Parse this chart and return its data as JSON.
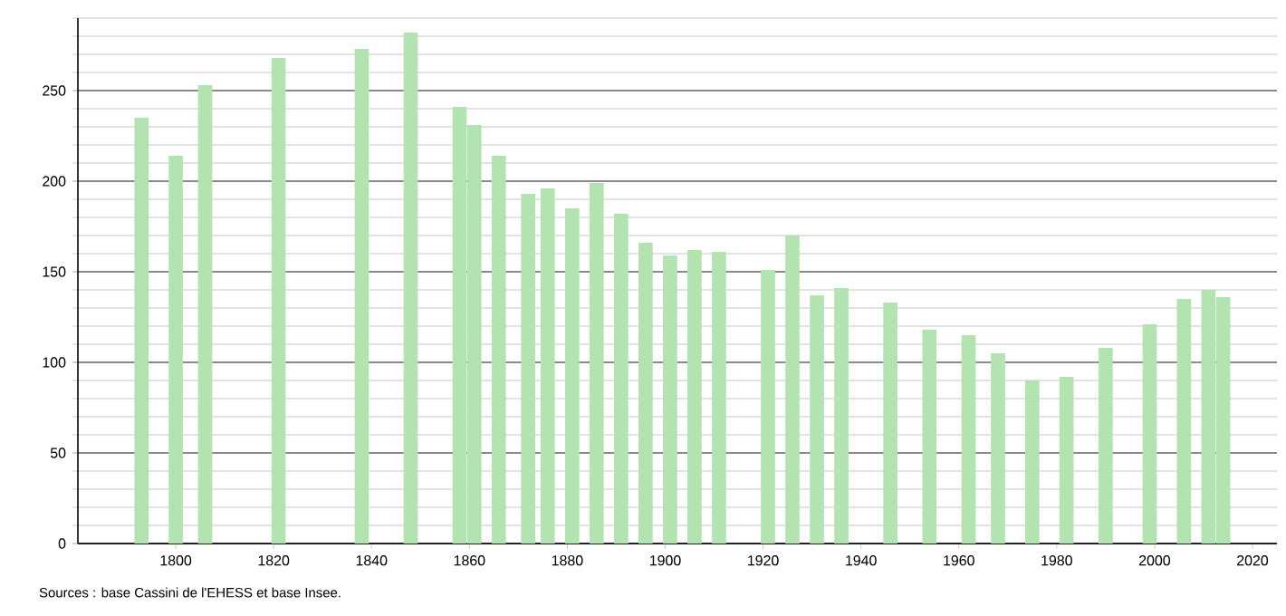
{
  "chart_data": {
    "type": "bar",
    "x": [
      1793,
      1800,
      1806,
      1821,
      1838,
      1848,
      1858,
      1861,
      1866,
      1872,
      1876,
      1881,
      1886,
      1891,
      1896,
      1901,
      1906,
      1911,
      1921,
      1926,
      1931,
      1936,
      1946,
      1954,
      1962,
      1968,
      1975,
      1982,
      1990,
      1999,
      2006,
      2011,
      2014
    ],
    "values": [
      235,
      214,
      253,
      268,
      273,
      282,
      241,
      231,
      214,
      193,
      196,
      185,
      199,
      182,
      166,
      159,
      162,
      161,
      151,
      170,
      137,
      141,
      133,
      118,
      115,
      105,
      90,
      92,
      108,
      121,
      135,
      140,
      136
    ],
    "color": "#b3e3b0",
    "xlim": [
      1780,
      2025
    ],
    "xticks": [
      1800,
      1820,
      1840,
      1860,
      1880,
      1900,
      1920,
      1940,
      1960,
      1980,
      2000,
      2020
    ],
    "ylim": [
      0,
      290
    ],
    "yticks": [
      0,
      50,
      100,
      150,
      200,
      250
    ],
    "grid": "y",
    "annotations": [
      "Sources : base Cassini de l'EHESS et base Insee."
    ]
  }
}
